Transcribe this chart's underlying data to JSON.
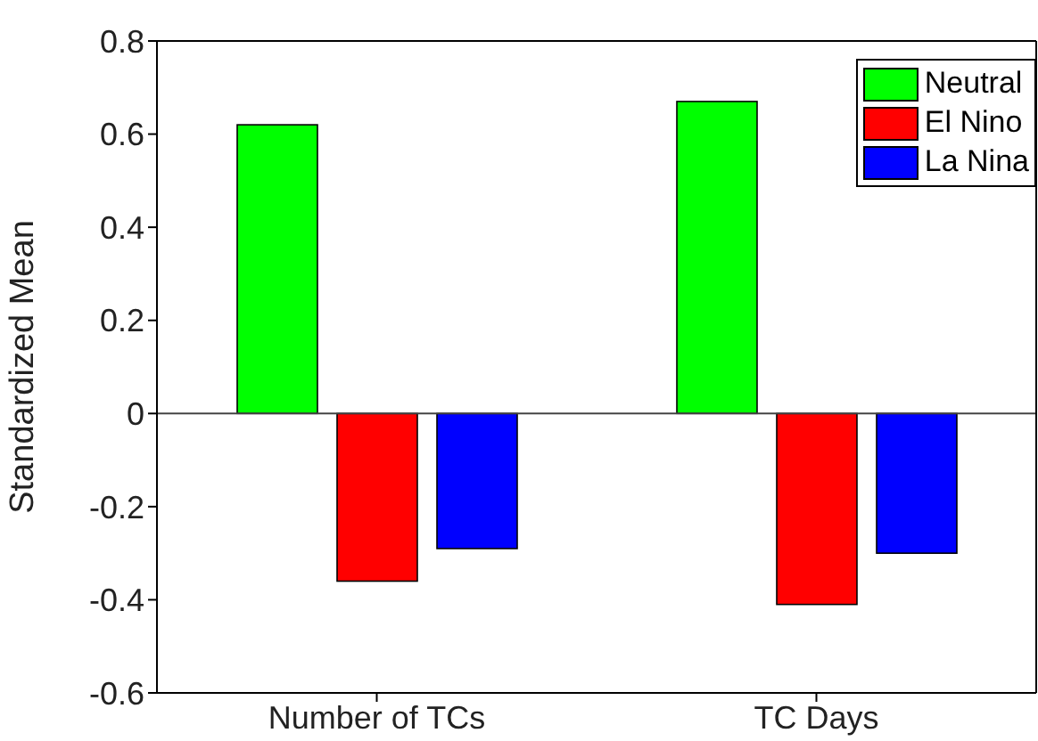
{
  "chart_data": {
    "type": "bar",
    "ylabel": "Standardized Mean",
    "categories": [
      "Number of TCs",
      "TC Days"
    ],
    "series": [
      {
        "name": "Neutral",
        "color": "#00ff00",
        "values": [
          0.62,
          0.67
        ]
      },
      {
        "name": "El Nino",
        "color": "#ff0000",
        "values": [
          -0.36,
          -0.41
        ]
      },
      {
        "name": "La Nina",
        "color": "#0000ff",
        "values": [
          -0.29,
          -0.3
        ]
      }
    ],
    "ref_lines": [
      {
        "axis": "y",
        "value": 0,
        "color": "#444444"
      }
    ],
    "ylim": [
      -0.6,
      0.8
    ],
    "yticks": [
      -0.6,
      -0.4,
      -0.2,
      0,
      0.2,
      0.4,
      0.6,
      0.8
    ],
    "grid": false,
    "legend": "top right"
  }
}
